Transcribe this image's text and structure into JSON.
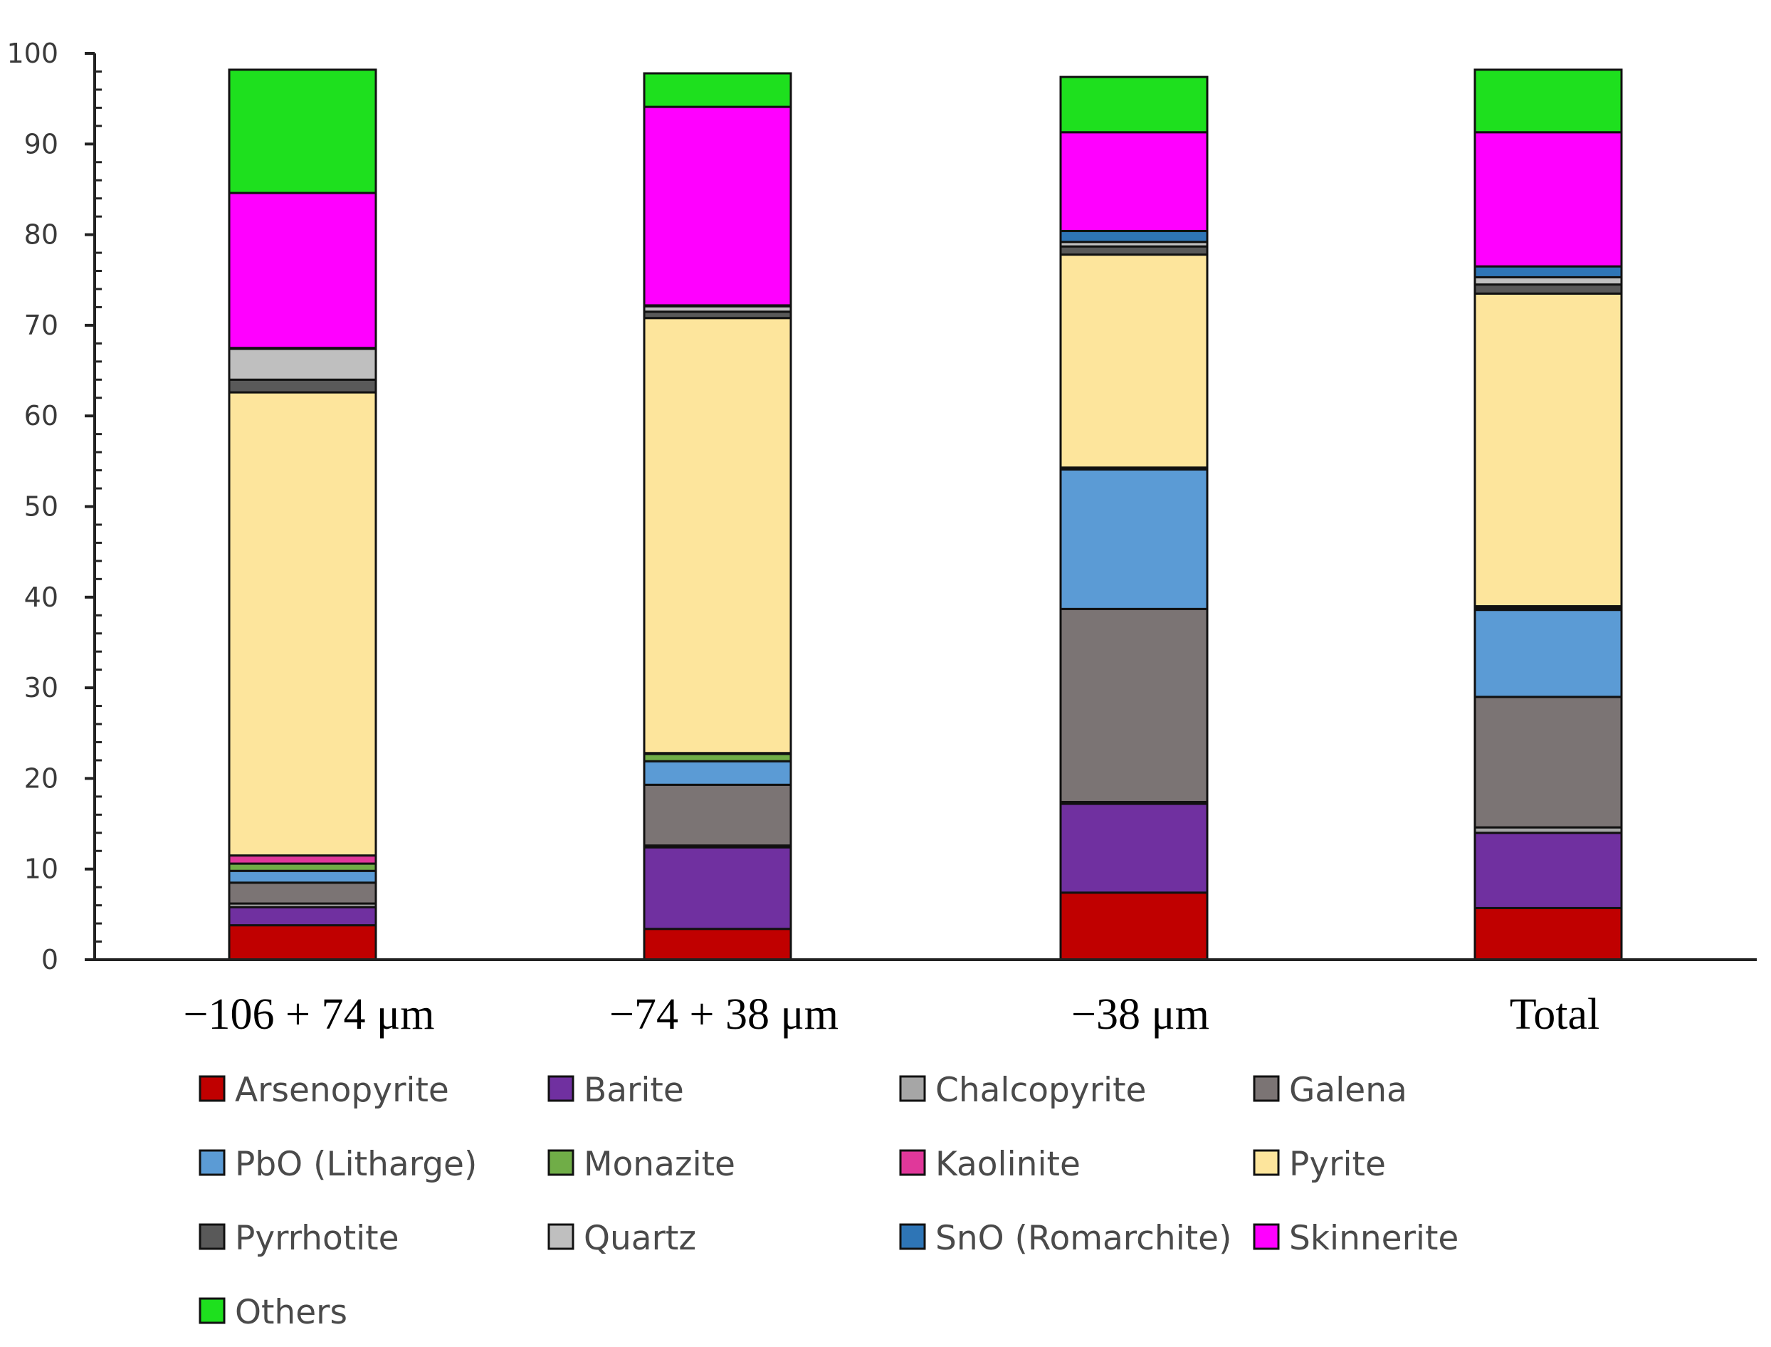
{
  "chart_data": {
    "type": "bar",
    "stacked": true,
    "categories": [
      "−106 + 74 μm",
      "−74 + 38 μm",
      "−38 μm",
      "Total"
    ],
    "ylim": [
      0,
      100
    ],
    "yticks": [
      0,
      10,
      20,
      30,
      40,
      50,
      60,
      70,
      80,
      90,
      100
    ],
    "xlabel": "",
    "ylabel": "",
    "title": "",
    "legend_position": "bottom",
    "series": [
      {
        "name": "Arsenopyrite",
        "color": "#c00000",
        "values": [
          3.8,
          3.4,
          7.4,
          5.7
        ]
      },
      {
        "name": "Barite",
        "color": "#7030a0",
        "values": [
          2.0,
          9.0,
          9.8,
          8.3
        ]
      },
      {
        "name": "Chalcopyrite",
        "color": "#a6a6a6",
        "values": [
          0.4,
          0.2,
          0.2,
          0.6
        ]
      },
      {
        "name": "Galena",
        "color": "#7b7474",
        "values": [
          2.3,
          6.7,
          21.3,
          14.4
        ]
      },
      {
        "name": "PbO (Litharge)",
        "color": "#5b9bd5",
        "values": [
          1.3,
          2.6,
          15.4,
          9.6
        ]
      },
      {
        "name": "Monazite",
        "color": "#70ad47",
        "values": [
          0.8,
          0.8,
          0.1,
          0.2
        ]
      },
      {
        "name": "Kaolinite",
        "color": "#e0389a",
        "values": [
          0.9,
          0.1,
          0.1,
          0.2
        ]
      },
      {
        "name": "Pyrite",
        "color": "#fde59c",
        "values": [
          51.1,
          48.0,
          23.5,
          34.5
        ]
      },
      {
        "name": "Pyrrhotite",
        "color": "#595959",
        "values": [
          1.4,
          0.7,
          0.9,
          1.0
        ]
      },
      {
        "name": "Quartz",
        "color": "#bfbfbf",
        "values": [
          3.4,
          0.6,
          0.5,
          0.8
        ]
      },
      {
        "name": "SnO (Romarchite)",
        "color": "#2e75b6",
        "values": [
          0.1,
          0.1,
          1.2,
          1.2
        ]
      },
      {
        "name": "Skinnerite",
        "color": "#ff00ff",
        "values": [
          17.1,
          21.9,
          10.9,
          14.8
        ]
      },
      {
        "name": "Others",
        "color": "#1ee01e",
        "values": [
          13.6,
          3.7,
          6.1,
          6.9
        ]
      }
    ]
  }
}
